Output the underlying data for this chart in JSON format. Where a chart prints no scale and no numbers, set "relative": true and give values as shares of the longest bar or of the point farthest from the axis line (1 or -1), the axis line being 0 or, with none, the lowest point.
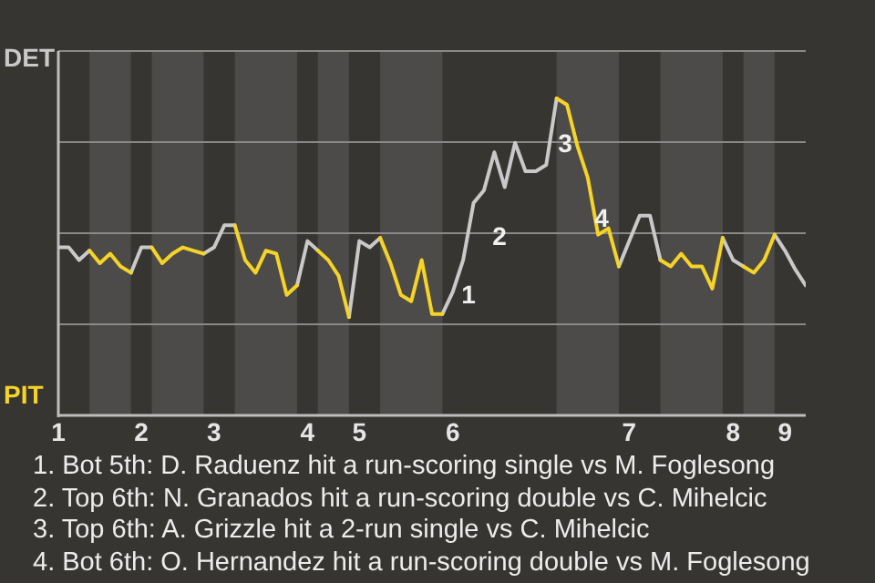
{
  "chart_data": {
    "type": "line",
    "relative": true,
    "categories": [
      "1",
      null,
      null,
      null,
      null,
      null,
      null,
      null,
      "2",
      null,
      null,
      null,
      null,
      null,
      null,
      "3",
      null,
      null,
      null,
      null,
      null,
      null,
      null,
      null,
      "4",
      null,
      null,
      null,
      null,
      "5",
      null,
      null,
      null,
      null,
      null,
      null,
      null,
      null,
      "6",
      null,
      null,
      null,
      null,
      null,
      null,
      null,
      null,
      null,
      null,
      null,
      null,
      null,
      null,
      null,
      null,
      "7",
      null,
      null,
      null,
      null,
      null,
      null,
      null,
      null,
      null,
      "8",
      null,
      null,
      null,
      null,
      "9",
      null,
      null
    ],
    "series": [
      {
        "name": "DET",
        "color": "#c9c9c9",
        "values": [
          0.53,
          0.53,
          0.49,
          0.52,
          null,
          null,
          null,
          0.45,
          0.53,
          0.53,
          null,
          null,
          null,
          null,
          0.51,
          0.53,
          0.6,
          0.6,
          null,
          null,
          null,
          null,
          null,
          0.41,
          0.55,
          0.52,
          null,
          null,
          0.31,
          0.55,
          0.53,
          0.56,
          null,
          null,
          null,
          null,
          null,
          0.32,
          0.39,
          0.49,
          0.67,
          0.71,
          0.83,
          0.72,
          0.86,
          0.77,
          0.77,
          0.79,
          1,
          null,
          null,
          null,
          null,
          null,
          0.47,
          0.55,
          0.63,
          0.63,
          0.49,
          null,
          null,
          null,
          null,
          null,
          0.56,
          0.49,
          0.47,
          null,
          null,
          0.57,
          0.52,
          0.46,
          0.41
        ]
      },
      {
        "name": "PIT",
        "color": "#f5d327",
        "values": [
          null,
          null,
          null,
          0.52,
          0.48,
          0.51,
          0.47,
          0.45,
          null,
          0.53,
          0.48,
          0.51,
          0.53,
          0.52,
          0.51,
          null,
          null,
          0.6,
          0.49,
          0.45,
          0.52,
          0.51,
          0.38,
          0.41,
          null,
          0.52,
          0.49,
          0.44,
          0.31,
          null,
          null,
          0.56,
          0.48,
          0.38,
          0.36,
          0.49,
          0.32,
          0.32,
          null,
          null,
          null,
          null,
          null,
          null,
          null,
          null,
          null,
          null,
          1,
          0.98,
          0.85,
          0.75,
          0.57,
          0.59,
          0.47,
          null,
          null,
          null,
          0.49,
          0.47,
          0.51,
          0.47,
          0.47,
          0.4,
          0.56,
          null,
          0.47,
          0.45,
          0.49,
          0.57,
          null,
          null,
          null
        ]
      }
    ],
    "grid": "y",
    "marker": "none",
    "line_style": "solid",
    "annotations": [
      "1",
      "2",
      "3",
      "4",
      "1. Bot 5th: D. Raduenz hit a run-scoring single vs M. Foglesong",
      "2. Top 6th: N. Granados hit a run-scoring double vs C. Mihelcic",
      "3. Top 6th: A. Grizzle hit a 2-run single vs C. Mihelcic",
      "4. Bot 6th: O. Hernandez hit a run-scoring double vs M. Foglesong"
    ]
  }
}
